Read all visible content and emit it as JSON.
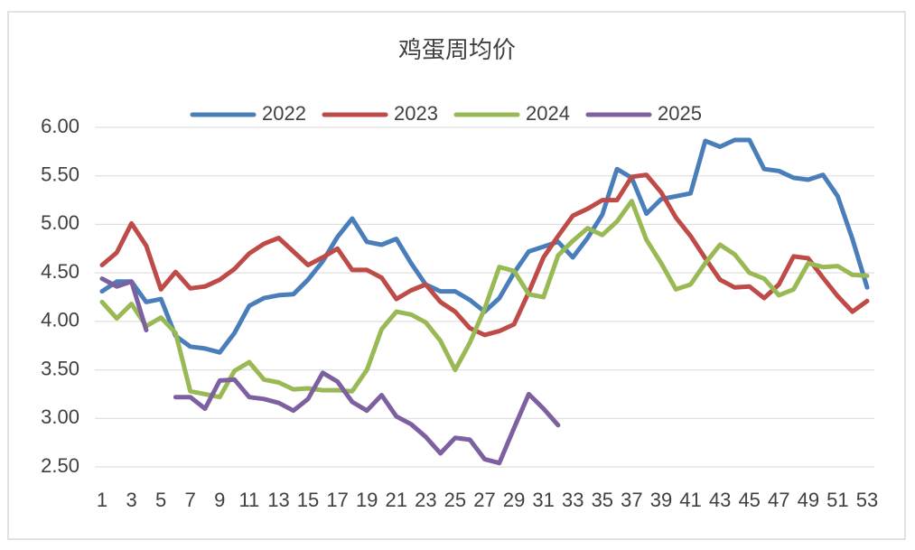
{
  "chart_data": {
    "type": "line",
    "title": "鸡蛋周均价",
    "categories": [
      1,
      null,
      3,
      null,
      5,
      null,
      7,
      null,
      9,
      null,
      11,
      null,
      13,
      null,
      15,
      null,
      17,
      null,
      19,
      null,
      21,
      null,
      23,
      null,
      25,
      null,
      27,
      null,
      29,
      null,
      31,
      null,
      33,
      null,
      35,
      null,
      37,
      null,
      39,
      null,
      41,
      null,
      43,
      null,
      45,
      null,
      47,
      null,
      49,
      null,
      51,
      null,
      53
    ],
    "series": [
      {
        "name": "2022",
        "color": "#4a7ebb",
        "values": [
          4.31,
          4.41,
          4.41,
          4.2,
          4.23,
          3.85,
          3.74,
          3.72,
          3.68,
          3.88,
          4.16,
          4.24,
          4.27,
          4.28,
          4.43,
          4.62,
          4.87,
          5.06,
          4.82,
          4.79,
          4.85,
          4.6,
          4.38,
          4.31,
          4.31,
          4.22,
          4.1,
          4.24,
          4.5,
          4.72,
          4.77,
          4.82,
          4.66,
          4.86,
          5.1,
          5.57,
          5.48,
          5.11,
          5.26,
          5.29,
          5.32,
          5.86,
          5.8,
          5.87,
          5.87,
          5.57,
          5.55,
          5.48,
          5.46,
          5.51,
          5.29,
          4.85,
          4.35
        ]
      },
      {
        "name": "2023",
        "color": "#be4b48",
        "values": [
          4.58,
          4.71,
          5.01,
          4.78,
          4.33,
          4.51,
          4.34,
          4.36,
          4.43,
          4.54,
          4.7,
          4.8,
          4.86,
          4.72,
          4.58,
          4.66,
          4.75,
          4.53,
          4.53,
          4.45,
          4.23,
          4.32,
          4.38,
          4.2,
          4.1,
          3.93,
          3.86,
          3.9,
          3.97,
          4.3,
          4.66,
          4.88,
          5.09,
          5.16,
          5.25,
          5.25,
          5.49,
          5.51,
          5.33,
          5.07,
          4.88,
          4.65,
          4.43,
          4.35,
          4.36,
          4.24,
          4.38,
          4.67,
          4.65,
          4.45,
          4.26,
          4.1,
          4.21
        ]
      },
      {
        "name": "2024",
        "color": "#98b954",
        "values": [
          4.2,
          4.03,
          4.18,
          3.95,
          4.04,
          3.88,
          3.28,
          3.25,
          3.22,
          3.49,
          3.58,
          3.4,
          3.37,
          3.3,
          3.31,
          3.29,
          3.29,
          3.28,
          3.5,
          3.92,
          4.1,
          4.07,
          3.99,
          3.8,
          3.5,
          3.78,
          4.13,
          4.56,
          4.52,
          4.28,
          4.25,
          4.68,
          4.83,
          4.96,
          4.89,
          5.03,
          5.24,
          4.84,
          4.6,
          4.33,
          4.38,
          4.6,
          4.79,
          4.69,
          4.5,
          4.44,
          4.27,
          4.33,
          4.6,
          4.56,
          4.57,
          4.48,
          4.47
        ]
      },
      {
        "name": "2025",
        "color": "#7d60a0",
        "values": [
          4.44,
          4.36,
          4.41,
          3.91,
          null,
          3.22,
          3.22,
          3.1,
          3.39,
          3.4,
          3.22,
          3.2,
          3.16,
          3.08,
          3.2,
          3.47,
          3.38,
          3.17,
          3.08,
          3.24,
          3.02,
          2.94,
          2.81,
          2.64,
          2.8,
          2.78,
          2.58,
          2.54,
          2.9,
          3.25,
          3.1,
          2.93,
          null,
          null,
          null,
          null,
          null,
          null,
          null,
          null,
          null,
          null,
          null,
          null,
          null,
          null,
          null,
          null,
          null,
          null,
          null,
          null,
          null
        ]
      }
    ],
    "ylim": [
      2.5,
      6.0
    ],
    "yticks": [
      {
        "value": 2.5,
        "label": "2.50"
      },
      {
        "value": 3,
        "label": "3.00"
      },
      {
        "value": 3.5,
        "label": "3.50"
      },
      {
        "value": 4,
        "label": "4.00"
      },
      {
        "value": 4.5,
        "label": "4.50"
      },
      {
        "value": 5,
        "label": "5.00"
      },
      {
        "value": 5.5,
        "label": "5.50"
      },
      {
        "value": 6,
        "label": "6.00"
      }
    ],
    "grid": true,
    "legend": "top"
  }
}
